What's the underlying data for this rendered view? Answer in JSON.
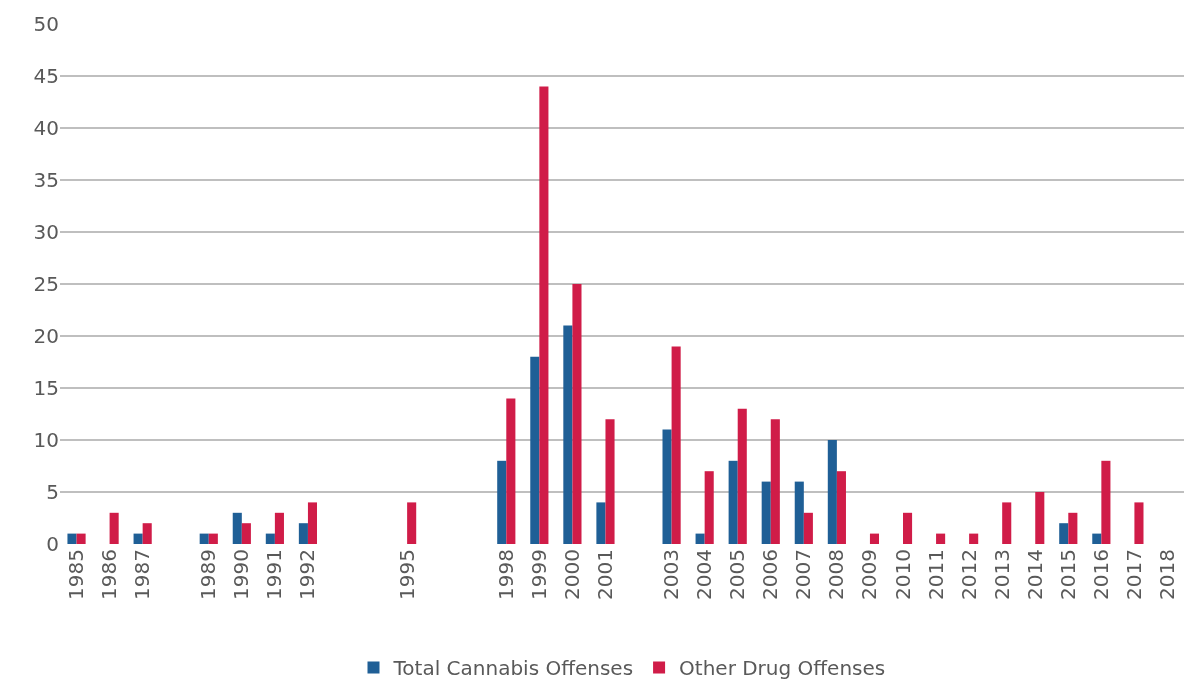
{
  "chart_data": {
    "type": "bar",
    "categories": [
      "1985",
      "1986",
      "1987",
      null,
      "1989",
      "1990",
      "1991",
      "1992",
      null,
      null,
      "1995",
      null,
      null,
      "1998",
      "1999",
      "2000",
      "2001",
      null,
      "2003",
      "2004",
      "2005",
      "2006",
      "2007",
      "2008",
      "2009",
      "2010",
      "2011",
      "2012",
      "2013",
      "2014",
      "2015",
      "2016",
      "2017",
      "2018"
    ],
    "series": [
      {
        "name": "Total Cannabis Offenses",
        "color": "#1f5f96",
        "values": [
          1,
          0,
          1,
          null,
          1,
          3,
          1,
          2,
          null,
          null,
          0,
          null,
          null,
          8,
          18,
          21,
          4,
          null,
          11,
          1,
          8,
          6,
          6,
          10,
          0,
          0,
          0,
          0,
          0,
          0,
          2,
          1,
          0,
          0
        ]
      },
      {
        "name": "Other Drug Offenses",
        "color": "#d01c48",
        "values": [
          1,
          3,
          2,
          null,
          1,
          2,
          3,
          4,
          null,
          null,
          4,
          null,
          null,
          14,
          44,
          25,
          12,
          null,
          19,
          7,
          13,
          12,
          3,
          7,
          1,
          3,
          1,
          1,
          4,
          5,
          3,
          8,
          4,
          0
        ]
      }
    ],
    "ylim": [
      0,
      50
    ],
    "yticks": [
      0,
      5,
      10,
      15,
      20,
      25,
      30,
      35,
      40,
      45,
      50
    ],
    "grid": "y",
    "legend": "bottom"
  }
}
